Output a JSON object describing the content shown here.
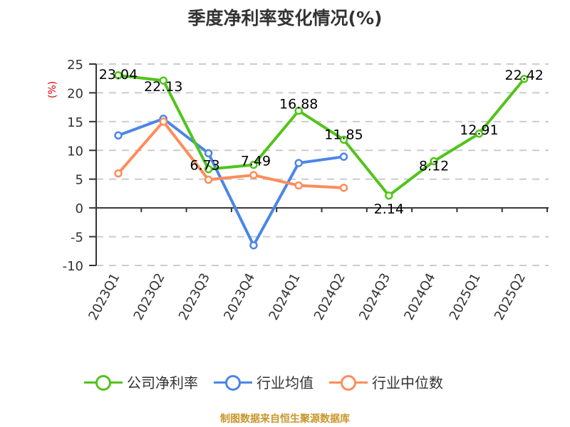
{
  "title": "季度净利率变化情况(%)",
  "footer": "制图数据来自恒生聚源数据库",
  "legend": [
    {
      "label": "公司净利率",
      "color": "#52c41a"
    },
    {
      "label": "行业均值",
      "color": "#4a86e8"
    },
    {
      "label": "行业中位数",
      "color": "#ff8c5a"
    }
  ],
  "chart_data": {
    "type": "line",
    "title": "季度净利率变化情况(%)",
    "xlabel": "",
    "ylabel": "(%)",
    "ylim": [
      -10,
      25
    ],
    "yticks": [
      25,
      20,
      15,
      10,
      5,
      0,
      -5,
      -10
    ],
    "grid": true,
    "legend_position": "bottom",
    "categories": [
      "2023Q1",
      "2023Q2",
      "2023Q3",
      "2023Q4",
      "2024Q1",
      "2024Q2",
      "2024Q3",
      "2024Q4",
      "2025Q1",
      "2025Q2"
    ],
    "series": [
      {
        "name": "公司净利率",
        "color": "#52c41a",
        "show_labels": true,
        "values": [
          23.04,
          22.13,
          6.73,
          7.49,
          16.88,
          11.85,
          2.14,
          8.12,
          12.91,
          22.42
        ]
      },
      {
        "name": "行业均值",
        "color": "#4a86e8",
        "show_labels": false,
        "values": [
          12.6,
          15.5,
          9.5,
          -6.5,
          7.8,
          8.9,
          null,
          null,
          null,
          null
        ]
      },
      {
        "name": "行业中位数",
        "color": "#ff8c5a",
        "show_labels": false,
        "values": [
          6.0,
          15.0,
          4.9,
          5.7,
          3.9,
          3.5,
          null,
          null,
          null,
          null
        ]
      }
    ],
    "data_labels": [
      "23.04",
      "22.13",
      "6.73",
      "7.49",
      "16.88",
      "11.85",
      "2.14",
      "8.12",
      "12.91",
      "22.42"
    ]
  }
}
